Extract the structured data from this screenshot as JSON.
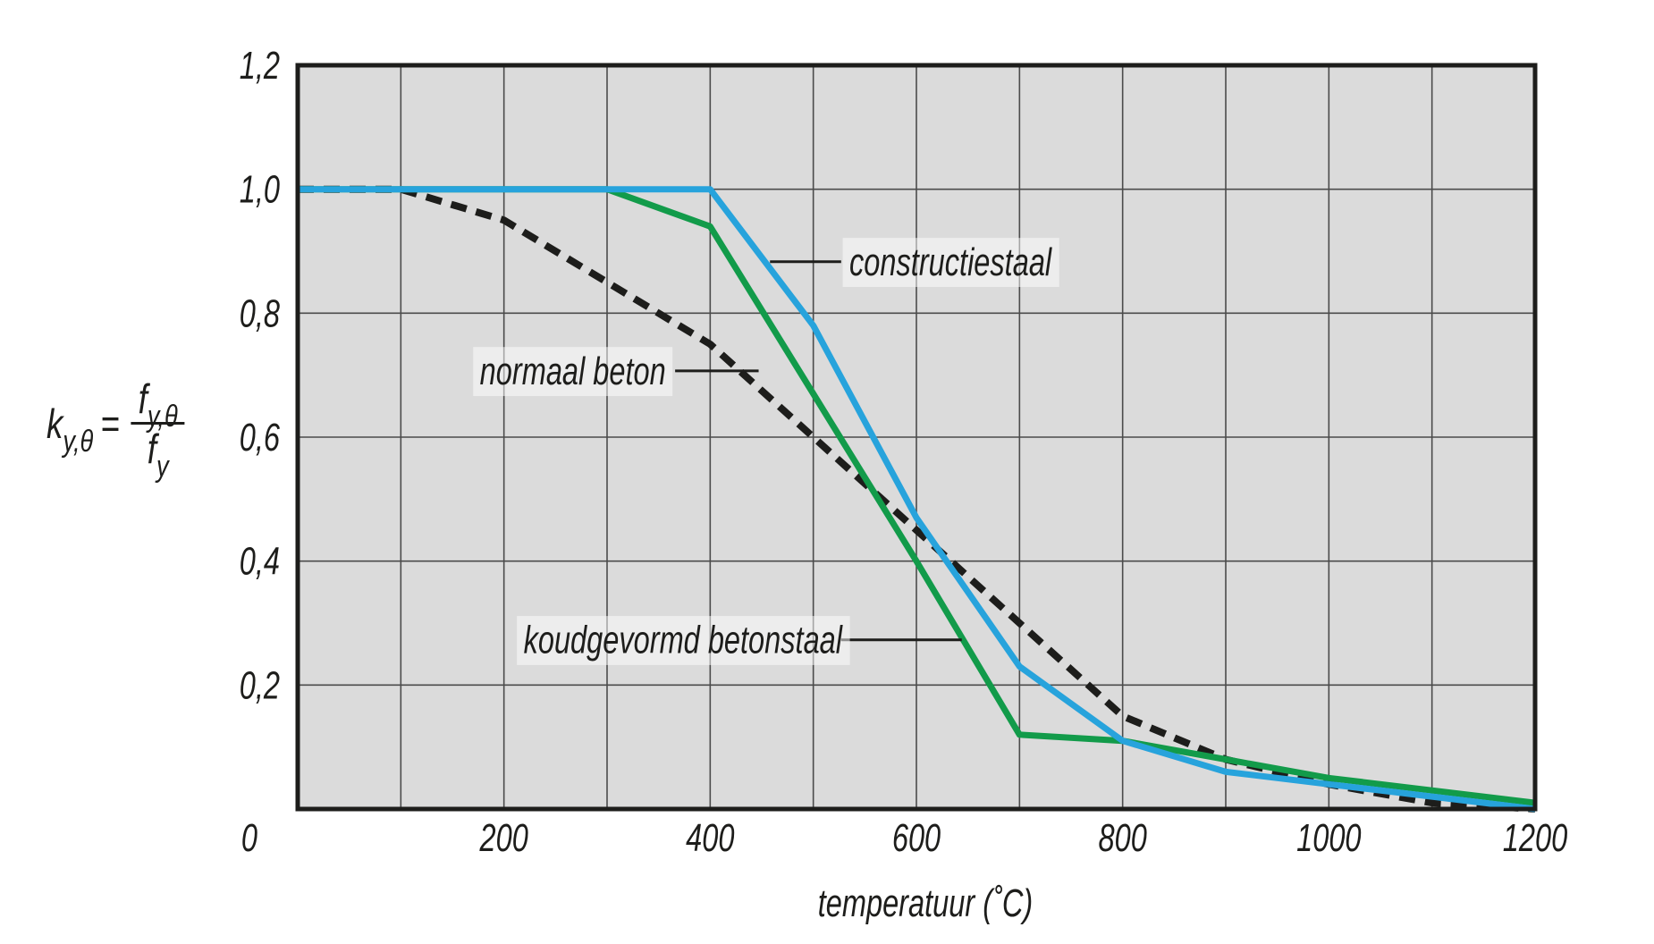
{
  "figure": {
    "background": "#ffffff",
    "plot_background": "#dbdbdb",
    "grid_color": "#4b4b4b",
    "axis_color": "#1d1d1b",
    "text_color": "#1d1d1b"
  },
  "formula": {
    "lhs_base": "k",
    "lhs_sub": "y,θ",
    "equals": "=",
    "num_base": "f",
    "num_sub": "y,θ",
    "den_base": "f",
    "den_sub": "y"
  },
  "chart_data": {
    "type": "line",
    "title": "",
    "xlabel": "temperatuur (˚C)",
    "ylabel": "k_y,θ = f_y,θ / f_y",
    "xlim": [
      0,
      1200
    ],
    "ylim": [
      0,
      1.2
    ],
    "x_grid_step": 100,
    "y_grid_step": 0.2,
    "grid": true,
    "legend_position": "none",
    "x_ticks": [
      {
        "v": 0,
        "label": "0"
      },
      {
        "v": 200,
        "label": "200"
      },
      {
        "v": 400,
        "label": "400"
      },
      {
        "v": 600,
        "label": "600"
      },
      {
        "v": 800,
        "label": "800"
      },
      {
        "v": 1000,
        "label": "1000"
      },
      {
        "v": 1200,
        "label": "1200"
      }
    ],
    "y_ticks": [
      {
        "v": 0.2,
        "label": "0,2"
      },
      {
        "v": 0.4,
        "label": "0,4"
      },
      {
        "v": 0.6,
        "label": "0,6"
      },
      {
        "v": 0.8,
        "label": "0,8"
      },
      {
        "v": 1.0,
        "label": "1,0"
      },
      {
        "v": 1.2,
        "label": "1,2"
      }
    ],
    "x": [
      0,
      100,
      200,
      300,
      400,
      500,
      600,
      700,
      800,
      900,
      1000,
      1100,
      1200
    ],
    "series": [
      {
        "name": "normaal beton",
        "style": "dashed",
        "color": "#1d1d1b",
        "values": [
          1.0,
          1.0,
          0.95,
          0.85,
          0.75,
          0.6,
          0.45,
          0.3,
          0.15,
          0.08,
          0.04,
          0.01,
          0.0
        ]
      },
      {
        "name": "koudgevormd betonstaal",
        "style": "solid",
        "color": "#129b4a",
        "values": [
          1.0,
          1.0,
          1.0,
          1.0,
          0.94,
          0.67,
          0.4,
          0.12,
          0.11,
          0.08,
          0.05,
          0.03,
          0.01
        ]
      },
      {
        "name": "constructiestaal",
        "style": "solid",
        "color": "#27a3dc",
        "values": [
          1.0,
          1.0,
          1.0,
          1.0,
          1.0,
          0.78,
          0.47,
          0.23,
          0.11,
          0.06,
          0.04,
          0.02,
          0.0
        ]
      }
    ],
    "annotations": [
      {
        "text": "constructiestaal",
        "anchor": "start",
        "tx": 535,
        "ty": 0.883,
        "leader": [
          458,
          527
        ]
      },
      {
        "text": "normaal beton",
        "anchor": "end",
        "tx": 357,
        "ty": 0.707,
        "leader": [
          366,
          447
        ]
      },
      {
        "text": "koudgevormd betonstaal",
        "anchor": "start",
        "tx": 219,
        "ty": 0.273,
        "leader": [
          527,
          644
        ]
      }
    ]
  }
}
